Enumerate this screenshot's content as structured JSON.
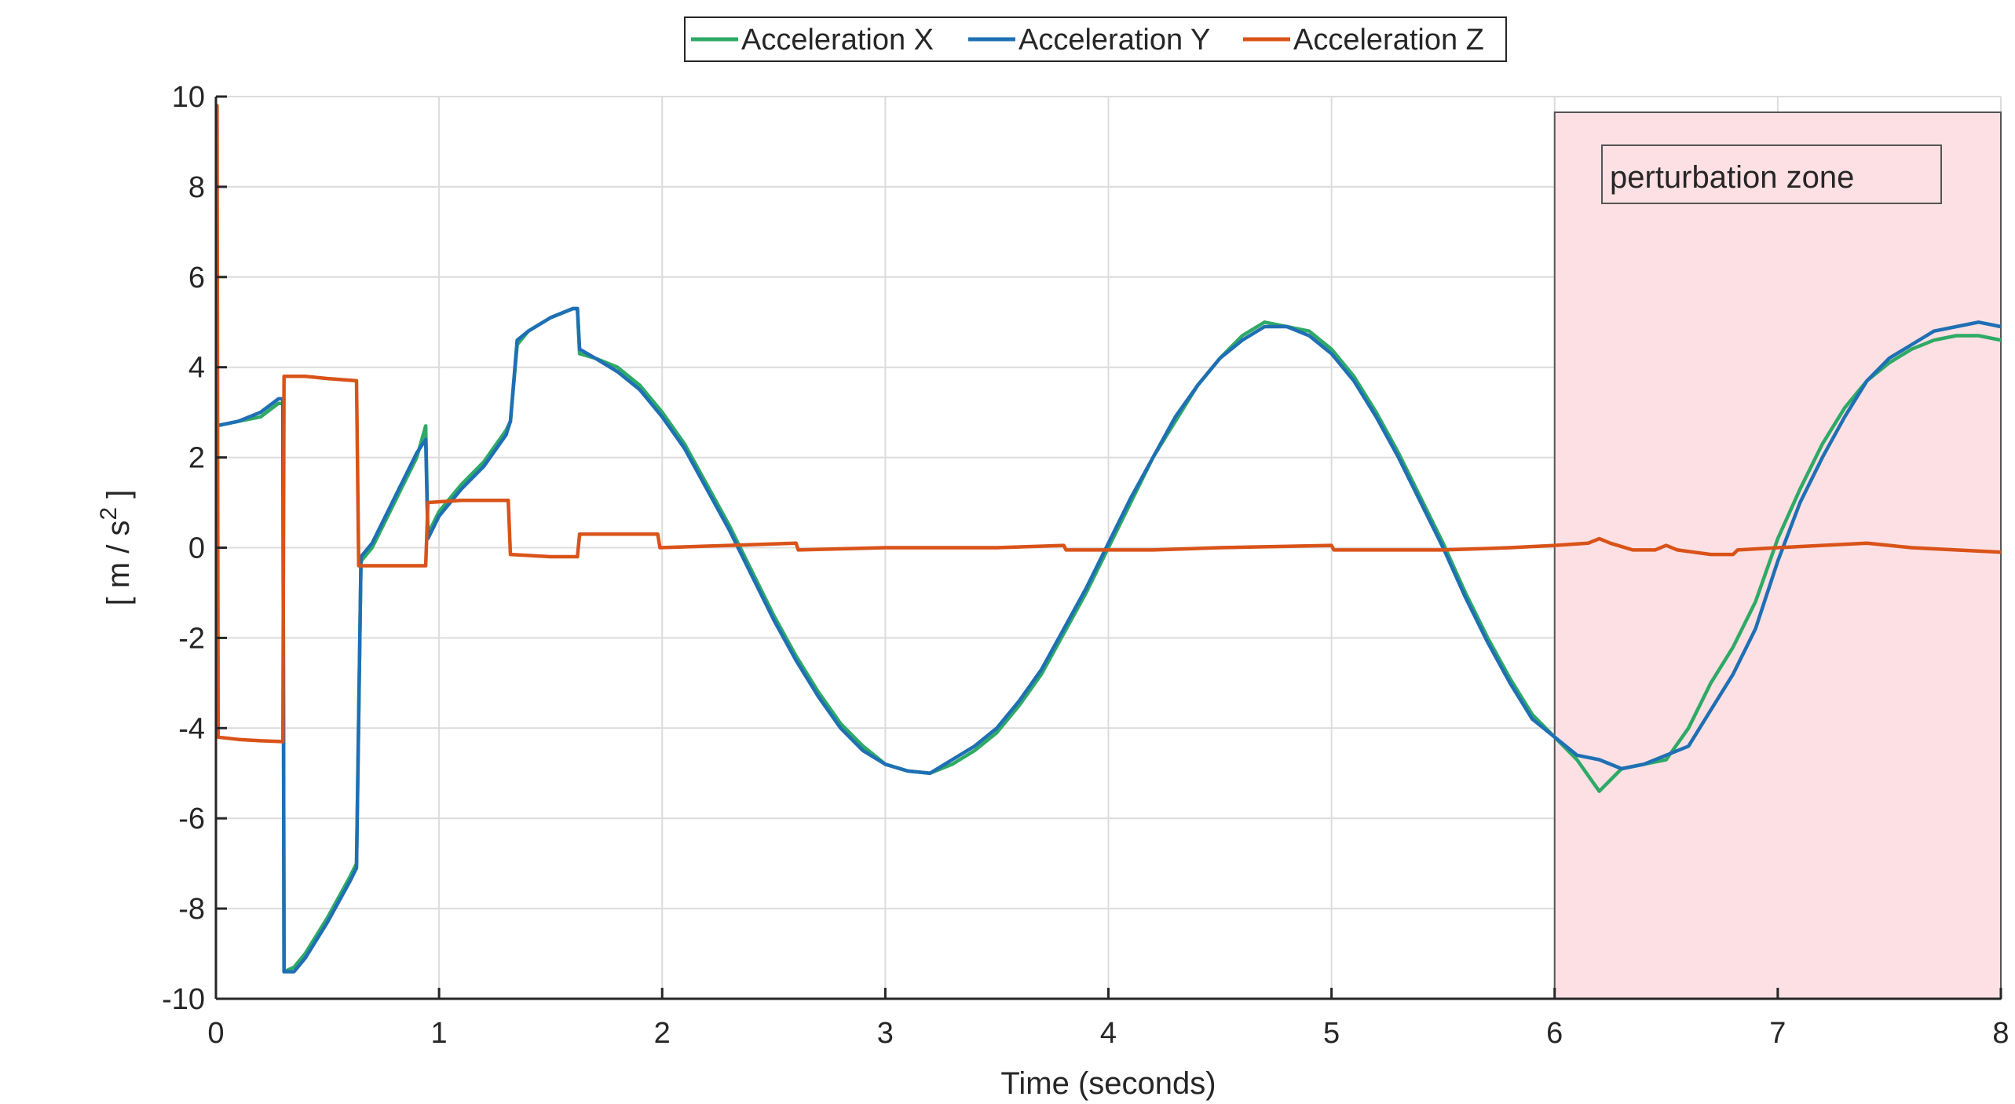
{
  "chart_data": {
    "type": "line",
    "xlabel": "Time (seconds)",
    "ylabel_main": "[ m / s",
    "ylabel_sup": "2",
    "ylabel_end": " ]",
    "xlim": [
      0,
      8
    ],
    "ylim": [
      -10,
      10
    ],
    "xticks": [
      0,
      1,
      2,
      3,
      4,
      5,
      6,
      7,
      8
    ],
    "yticks": [
      -10,
      -8,
      -6,
      -4,
      -2,
      0,
      2,
      4,
      6,
      8,
      10
    ],
    "grid": true,
    "legend_placement": "top-center",
    "annotation": {
      "text": "perturbation zone",
      "x_range": [
        6,
        8
      ],
      "color": "#fde0e3"
    },
    "series": [
      {
        "name": "Acceleration X",
        "color": "#2eaa66",
        "points": [
          [
            0,
            2.7
          ],
          [
            0.1,
            2.8
          ],
          [
            0.2,
            2.9
          ],
          [
            0.28,
            3.2
          ],
          [
            0.3,
            3.2
          ],
          [
            0.305,
            -9.4
          ],
          [
            0.35,
            -9.3
          ],
          [
            0.4,
            -9.0
          ],
          [
            0.5,
            -8.2
          ],
          [
            0.6,
            -7.3
          ],
          [
            0.63,
            -7.0
          ],
          [
            0.65,
            -0.3
          ],
          [
            0.7,
            0.0
          ],
          [
            0.8,
            1.0
          ],
          [
            0.9,
            2.0
          ],
          [
            0.94,
            2.7
          ],
          [
            0.95,
            0.3
          ],
          [
            1.0,
            0.8
          ],
          [
            1.1,
            1.4
          ],
          [
            1.2,
            1.9
          ],
          [
            1.3,
            2.6
          ],
          [
            1.32,
            2.8
          ],
          [
            1.35,
            4.5
          ],
          [
            1.4,
            4.8
          ],
          [
            1.5,
            5.1
          ],
          [
            1.6,
            5.3
          ],
          [
            1.62,
            5.3
          ],
          [
            1.63,
            4.3
          ],
          [
            1.7,
            4.2
          ],
          [
            1.8,
            4.0
          ],
          [
            1.9,
            3.6
          ],
          [
            2.0,
            3.0
          ],
          [
            2.1,
            2.3
          ],
          [
            2.2,
            1.4
          ],
          [
            2.3,
            0.5
          ],
          [
            2.4,
            -0.5
          ],
          [
            2.5,
            -1.5
          ],
          [
            2.6,
            -2.4
          ],
          [
            2.7,
            -3.2
          ],
          [
            2.8,
            -3.9
          ],
          [
            2.9,
            -4.4
          ],
          [
            3.0,
            -4.8
          ],
          [
            3.1,
            -4.95
          ],
          [
            3.2,
            -5.0
          ],
          [
            3.3,
            -4.8
          ],
          [
            3.4,
            -4.5
          ],
          [
            3.5,
            -4.1
          ],
          [
            3.6,
            -3.5
          ],
          [
            3.7,
            -2.8
          ],
          [
            3.8,
            -1.9
          ],
          [
            3.9,
            -1.0
          ],
          [
            4.0,
            0.0
          ],
          [
            4.1,
            1.0
          ],
          [
            4.2,
            2.0
          ],
          [
            4.3,
            2.8
          ],
          [
            4.4,
            3.6
          ],
          [
            4.5,
            4.2
          ],
          [
            4.6,
            4.7
          ],
          [
            4.7,
            5.0
          ],
          [
            4.8,
            4.9
          ],
          [
            4.9,
            4.8
          ],
          [
            5.0,
            4.4
          ],
          [
            5.1,
            3.8
          ],
          [
            5.2,
            3.0
          ],
          [
            5.3,
            2.1
          ],
          [
            5.4,
            1.1
          ],
          [
            5.5,
            0.1
          ],
          [
            5.6,
            -1.0
          ],
          [
            5.7,
            -2.0
          ],
          [
            5.8,
            -2.9
          ],
          [
            5.9,
            -3.7
          ],
          [
            6.0,
            -4.2
          ],
          [
            6.1,
            -4.7
          ],
          [
            6.2,
            -5.4
          ],
          [
            6.3,
            -4.9
          ],
          [
            6.4,
            -4.8
          ],
          [
            6.5,
            -4.7
          ],
          [
            6.6,
            -4.0
          ],
          [
            6.7,
            -3.0
          ],
          [
            6.8,
            -2.2
          ],
          [
            6.9,
            -1.2
          ],
          [
            7.0,
            0.2
          ],
          [
            7.1,
            1.3
          ],
          [
            7.2,
            2.3
          ],
          [
            7.3,
            3.1
          ],
          [
            7.4,
            3.7
          ],
          [
            7.5,
            4.1
          ],
          [
            7.6,
            4.4
          ],
          [
            7.7,
            4.6
          ],
          [
            7.8,
            4.7
          ],
          [
            7.9,
            4.7
          ],
          [
            8.0,
            4.6
          ]
        ]
      },
      {
        "name": "Acceleration Y",
        "color": "#1f6fb4",
        "points": [
          [
            0,
            2.7
          ],
          [
            0.1,
            2.8
          ],
          [
            0.2,
            3.0
          ],
          [
            0.28,
            3.3
          ],
          [
            0.3,
            3.3
          ],
          [
            0.305,
            -9.4
          ],
          [
            0.35,
            -9.4
          ],
          [
            0.4,
            -9.1
          ],
          [
            0.5,
            -8.3
          ],
          [
            0.6,
            -7.4
          ],
          [
            0.63,
            -7.1
          ],
          [
            0.65,
            -0.2
          ],
          [
            0.7,
            0.1
          ],
          [
            0.8,
            1.1
          ],
          [
            0.9,
            2.1
          ],
          [
            0.94,
            2.4
          ],
          [
            0.95,
            0.2
          ],
          [
            1.0,
            0.7
          ],
          [
            1.1,
            1.3
          ],
          [
            1.2,
            1.8
          ],
          [
            1.3,
            2.5
          ],
          [
            1.32,
            2.8
          ],
          [
            1.35,
            4.6
          ],
          [
            1.4,
            4.8
          ],
          [
            1.5,
            5.1
          ],
          [
            1.6,
            5.3
          ],
          [
            1.62,
            5.3
          ],
          [
            1.63,
            4.4
          ],
          [
            1.7,
            4.2
          ],
          [
            1.8,
            3.9
          ],
          [
            1.9,
            3.5
          ],
          [
            2.0,
            2.9
          ],
          [
            2.1,
            2.2
          ],
          [
            2.2,
            1.3
          ],
          [
            2.3,
            0.4
          ],
          [
            2.4,
            -0.6
          ],
          [
            2.5,
            -1.6
          ],
          [
            2.6,
            -2.5
          ],
          [
            2.7,
            -3.3
          ],
          [
            2.8,
            -4.0
          ],
          [
            2.9,
            -4.5
          ],
          [
            3.0,
            -4.8
          ],
          [
            3.1,
            -4.95
          ],
          [
            3.2,
            -5.0
          ],
          [
            3.3,
            -4.7
          ],
          [
            3.4,
            -4.4
          ],
          [
            3.5,
            -4.0
          ],
          [
            3.6,
            -3.4
          ],
          [
            3.7,
            -2.7
          ],
          [
            3.8,
            -1.8
          ],
          [
            3.9,
            -0.9
          ],
          [
            4.0,
            0.1
          ],
          [
            4.1,
            1.1
          ],
          [
            4.2,
            2.0
          ],
          [
            4.3,
            2.9
          ],
          [
            4.4,
            3.6
          ],
          [
            4.5,
            4.2
          ],
          [
            4.6,
            4.6
          ],
          [
            4.7,
            4.9
          ],
          [
            4.8,
            4.9
          ],
          [
            4.9,
            4.7
          ],
          [
            5.0,
            4.3
          ],
          [
            5.1,
            3.7
          ],
          [
            5.2,
            2.9
          ],
          [
            5.3,
            2.0
          ],
          [
            5.4,
            1.0
          ],
          [
            5.5,
            0.0
          ],
          [
            5.6,
            -1.1
          ],
          [
            5.7,
            -2.1
          ],
          [
            5.8,
            -3.0
          ],
          [
            5.9,
            -3.8
          ],
          [
            6.0,
            -4.2
          ],
          [
            6.1,
            -4.6
          ],
          [
            6.2,
            -4.7
          ],
          [
            6.3,
            -4.9
          ],
          [
            6.4,
            -4.8
          ],
          [
            6.5,
            -4.6
          ],
          [
            6.6,
            -4.4
          ],
          [
            6.7,
            -3.6
          ],
          [
            6.8,
            -2.8
          ],
          [
            6.9,
            -1.8
          ],
          [
            7.0,
            -0.3
          ],
          [
            7.1,
            1.0
          ],
          [
            7.2,
            2.0
          ],
          [
            7.3,
            2.9
          ],
          [
            7.4,
            3.7
          ],
          [
            7.5,
            4.2
          ],
          [
            7.6,
            4.5
          ],
          [
            7.7,
            4.8
          ],
          [
            7.8,
            4.9
          ],
          [
            7.9,
            5.0
          ],
          [
            8.0,
            4.9
          ]
        ]
      },
      {
        "name": "Acceleration Z",
        "color": "#d95319",
        "points": [
          [
            0,
            9.8
          ],
          [
            0.005,
            9.8
          ],
          [
            0.01,
            -4.2
          ],
          [
            0.1,
            -4.25
          ],
          [
            0.2,
            -4.28
          ],
          [
            0.3,
            -4.3
          ],
          [
            0.305,
            3.8
          ],
          [
            0.4,
            3.8
          ],
          [
            0.5,
            3.75
          ],
          [
            0.63,
            3.7
          ],
          [
            0.64,
            -0.4
          ],
          [
            0.7,
            -0.4
          ],
          [
            0.8,
            -0.4
          ],
          [
            0.94,
            -0.4
          ],
          [
            0.95,
            1.0
          ],
          [
            1.1,
            1.05
          ],
          [
            1.31,
            1.05
          ],
          [
            1.32,
            -0.15
          ],
          [
            1.5,
            -0.2
          ],
          [
            1.62,
            -0.2
          ],
          [
            1.63,
            0.3
          ],
          [
            1.8,
            0.3
          ],
          [
            1.98,
            0.3
          ],
          [
            1.99,
            0.0
          ],
          [
            2.3,
            0.05
          ],
          [
            2.6,
            0.1
          ],
          [
            2.61,
            -0.05
          ],
          [
            3.0,
            0.0
          ],
          [
            3.5,
            0.0
          ],
          [
            3.8,
            0.05
          ],
          [
            3.81,
            -0.05
          ],
          [
            4.2,
            -0.05
          ],
          [
            4.5,
            0.0
          ],
          [
            5.0,
            0.05
          ],
          [
            5.01,
            -0.05
          ],
          [
            5.5,
            -0.05
          ],
          [
            5.8,
            0.0
          ],
          [
            6.0,
            0.05
          ],
          [
            6.15,
            0.1
          ],
          [
            6.2,
            0.2
          ],
          [
            6.25,
            0.1
          ],
          [
            6.35,
            -0.05
          ],
          [
            6.45,
            -0.05
          ],
          [
            6.5,
            0.05
          ],
          [
            6.55,
            -0.05
          ],
          [
            6.7,
            -0.15
          ],
          [
            6.8,
            -0.15
          ],
          [
            6.82,
            -0.05
          ],
          [
            7.0,
            0.0
          ],
          [
            7.2,
            0.05
          ],
          [
            7.4,
            0.1
          ],
          [
            7.5,
            0.05
          ],
          [
            7.6,
            0.0
          ],
          [
            7.8,
            -0.05
          ],
          [
            8.0,
            -0.1
          ]
        ]
      }
    ]
  }
}
